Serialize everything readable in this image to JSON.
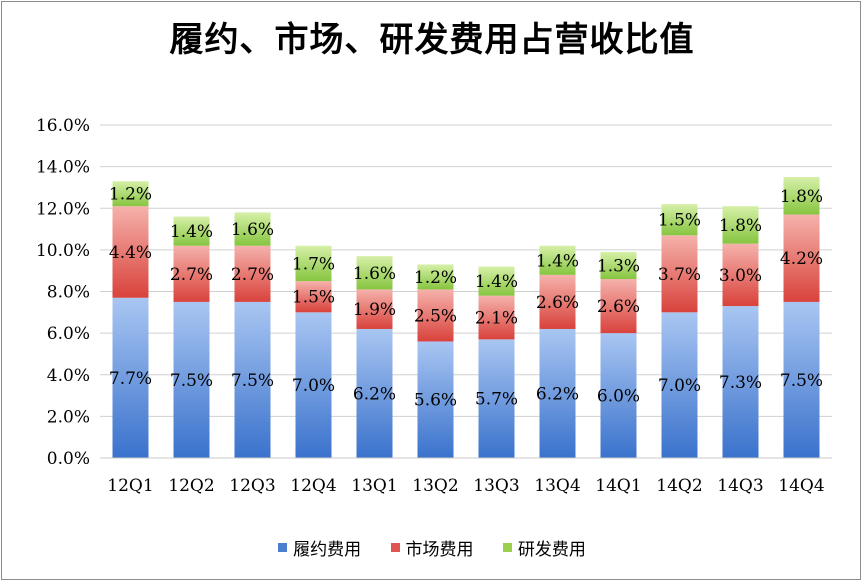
{
  "chart_data": {
    "type": "bar",
    "stacked": true,
    "title": "履约、市场、研发费用占营收比值",
    "categories": [
      "12Q1",
      "12Q2",
      "12Q3",
      "12Q4",
      "13Q1",
      "13Q2",
      "13Q3",
      "13Q4",
      "14Q1",
      "14Q2",
      "14Q3",
      "14Q4"
    ],
    "series": [
      {
        "name": "履约费用",
        "color": "#4a7fd0",
        "values": [
          7.7,
          7.5,
          7.5,
          7.0,
          6.2,
          5.6,
          5.7,
          6.2,
          6.0,
          7.0,
          7.3,
          7.5
        ],
        "labels": [
          "7.7%",
          "7.5%",
          "7.5%",
          "7.0%",
          "6.2%",
          "5.6%",
          "5.7%",
          "6.2%",
          "6.0%",
          "7.0%",
          "7.3%",
          "7.5%"
        ]
      },
      {
        "name": "市场费用",
        "color": "#e05550",
        "values": [
          4.4,
          2.7,
          2.7,
          1.5,
          1.9,
          2.5,
          2.1,
          2.6,
          2.6,
          3.7,
          3.0,
          4.2
        ],
        "labels": [
          "4.4%",
          "2.7%",
          "2.7%",
          "1.5%",
          "1.9%",
          "2.5%",
          "2.1%",
          "2.6%",
          "2.6%",
          "3.7%",
          "3.0%",
          "4.2%"
        ]
      },
      {
        "name": "研发费用",
        "color": "#9ad04e",
        "values": [
          1.2,
          1.4,
          1.6,
          1.7,
          1.6,
          1.2,
          1.4,
          1.4,
          1.3,
          1.5,
          1.8,
          1.8
        ],
        "labels": [
          "1.2%",
          "1.4%",
          "1.6%",
          "1.7%",
          "1.6%",
          "1.2%",
          "1.4%",
          "1.4%",
          "1.3%",
          "1.5%",
          "1.8%",
          "1.8%"
        ]
      }
    ],
    "ylim": [
      0,
      16
    ],
    "yticks": [
      0,
      2,
      4,
      6,
      8,
      10,
      12,
      14,
      16
    ],
    "ytick_labels": [
      "0.0%",
      "2.0%",
      "4.0%",
      "6.0%",
      "8.0%",
      "10.0%",
      "12.0%",
      "14.0%",
      "16.0%"
    ],
    "grid": true,
    "legend_position": "bottom"
  }
}
